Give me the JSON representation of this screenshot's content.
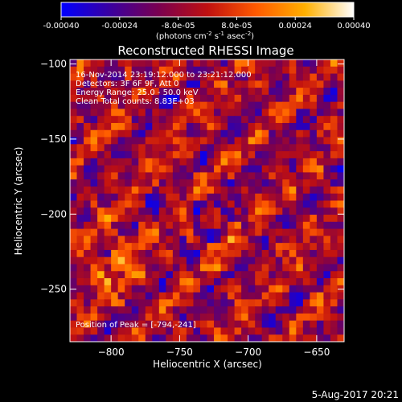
{
  "colorbar": {
    "ticks": [
      "-0.00040",
      "-0.00024",
      "-8.0e-05",
      "8.0e-05",
      "0.00024",
      "0.00040"
    ],
    "tick_values": [
      -0.0004,
      -0.00024,
      -8e-05,
      8e-05,
      0.00024,
      0.0004
    ],
    "range": [
      -0.0004,
      0.0004
    ],
    "units_label": "(photons cm",
    "units_exp1": "-2",
    "units_mid": " s",
    "units_exp2": "-1",
    "units_end": " asec",
    "units_exp3": "-2",
    "units_close": ")",
    "colors": [
      "#0000ff",
      "#3a00a0",
      "#7a0050",
      "#c01010",
      "#ff5a00",
      "#ffb000",
      "#ffffff"
    ]
  },
  "chart_data": {
    "type": "heatmap",
    "title": "Reconstructed RHESSI Image",
    "xlabel": "Heliocentric X (arcsec)",
    "ylabel": "Heliocentric Y (arcsec)",
    "xlim": [
      -830,
      -630
    ],
    "ylim": [
      -285,
      -97
    ],
    "x_ticks": [
      -800,
      -750,
      -700,
      -650
    ],
    "y_ticks": [
      -100,
      -150,
      -200,
      -250
    ],
    "x_tick_labels": [
      "−800",
      "−750",
      "−700",
      "−650"
    ],
    "y_tick_labels": [
      "−100",
      "−150",
      "−200",
      "−250"
    ],
    "annotations": [
      "16-Nov-2014 23:19:12.000 to 23:21:12.000",
      "Detectors: 3F 6F 9F, Att 0",
      "Energy Range: 25.0 - 50.0 keV",
      "Clean     Total counts: 8.83E+03"
    ],
    "peak_label": "Position of Peak = [-794,-241]",
    "peak": [
      -794,
      -241
    ]
  },
  "footer": {
    "timestamp": "5-Aug-2017 20:21"
  }
}
